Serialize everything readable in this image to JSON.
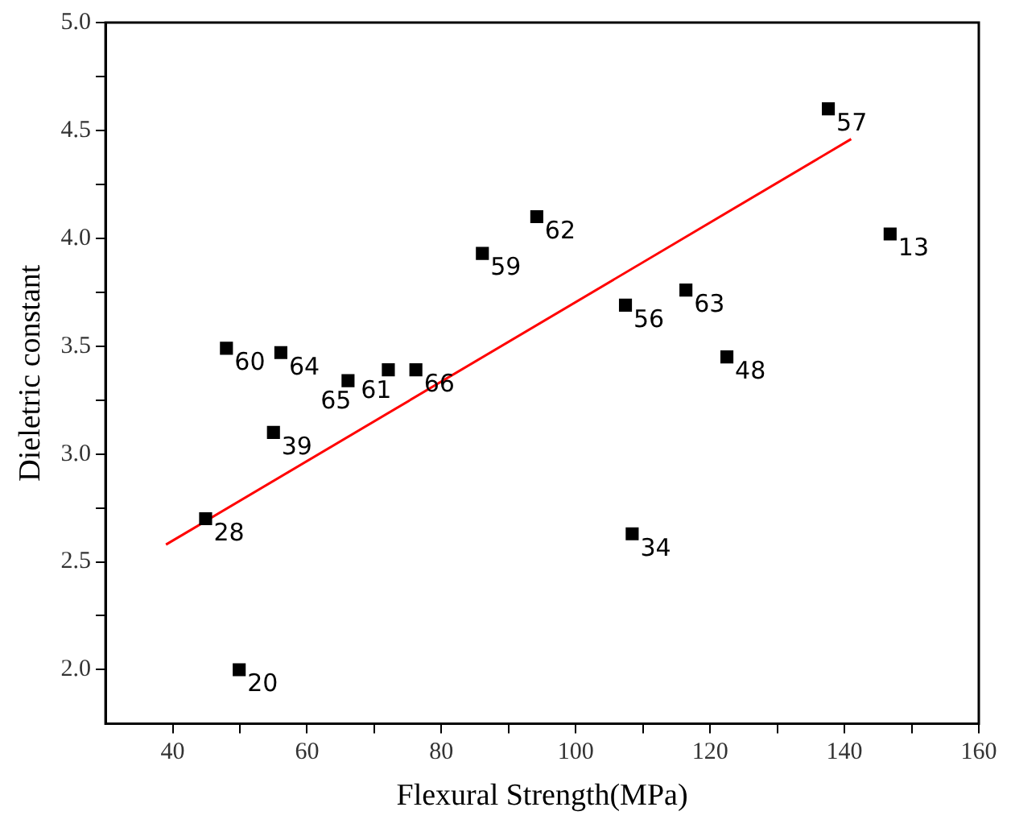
{
  "chart_data": {
    "type": "scatter",
    "xlabel": "Flexural Strength(MPa)",
    "ylabel": "Dieletric constant",
    "xlim": [
      30,
      160
    ],
    "xticks": [
      40,
      {
        "value": 50,
        "label": null
      },
      60,
      {
        "value": 70,
        "label": null
      },
      80,
      {
        "value": 90,
        "label": null
      },
      100,
      {
        "value": 110,
        "label": null
      },
      120,
      {
        "value": 130,
        "label": null
      },
      140,
      {
        "value": 150,
        "label": null
      },
      160
    ],
    "ylim": [
      1.75,
      5.0
    ],
    "yticks": [
      {
        "value": 2,
        "label": "2.0"
      },
      {
        "value": 2.25,
        "label": null
      },
      {
        "value": 2.5,
        "label": "2.5"
      },
      {
        "value": 2.75,
        "label": null
      },
      {
        "value": 3,
        "label": "3.0"
      },
      {
        "value": 3.25,
        "label": null
      },
      {
        "value": 3.5,
        "label": "3.5"
      },
      {
        "value": 3.75,
        "label": null
      },
      {
        "value": 4,
        "label": "4.0"
      },
      {
        "value": 4.25,
        "label": null
      },
      {
        "value": 4.5,
        "label": "4.5"
      },
      {
        "value": 4.75,
        "label": null
      },
      {
        "value": 5,
        "label": "5.0"
      }
    ],
    "grid": false,
    "legend": false,
    "marker": "square",
    "series": [
      {
        "type": "scatter",
        "color": "#000000",
        "x": [
          137.6,
          146.8,
          94.2,
          86.1,
          107.4,
          116.4,
          122.5,
          48.0,
          56.1,
          66.1,
          72.1,
          76.2,
          55.0,
          44.9,
          108.4,
          49.9
        ],
        "values": [
          4.6,
          4.02,
          4.1,
          3.93,
          3.69,
          3.76,
          3.45,
          3.49,
          3.47,
          3.34,
          3.39,
          3.39,
          3.1,
          2.7,
          2.63,
          2.0
        ]
      },
      {
        "type": "line",
        "color": "#ff0000",
        "marker": "none",
        "x": [
          39,
          141
        ],
        "values": [
          2.58,
          4.46
        ]
      }
    ],
    "annotations": [
      {
        "text": "57",
        "x": 137.6,
        "y": 4.6
      },
      {
        "text": "13",
        "x": 146.8,
        "y": 4.02
      },
      {
        "text": "62",
        "x": 94.2,
        "y": 4.1
      },
      {
        "text": "59",
        "x": 86.1,
        "y": 3.93
      },
      {
        "text": "56",
        "x": 107.4,
        "y": 3.69
      },
      {
        "text": "63",
        "x": 116.4,
        "y": 3.76
      },
      {
        "text": "48",
        "x": 122.5,
        "y": 3.45
      },
      {
        "text": "60",
        "x": 48.0,
        "y": 3.49
      },
      {
        "text": "64",
        "x": 56.1,
        "y": 3.47
      },
      {
        "text": "65",
        "x": 66.1,
        "y": 3.34
      },
      {
        "text": "61",
        "x": 72.1,
        "y": 3.39
      },
      {
        "text": "66",
        "x": 76.2,
        "y": 3.39
      },
      {
        "text": "39",
        "x": 55.0,
        "y": 3.1
      },
      {
        "text": "28",
        "x": 44.9,
        "y": 2.7
      },
      {
        "text": "34",
        "x": 108.4,
        "y": 2.63
      },
      {
        "text": "20",
        "x": 49.9,
        "y": 2.0
      }
    ]
  }
}
